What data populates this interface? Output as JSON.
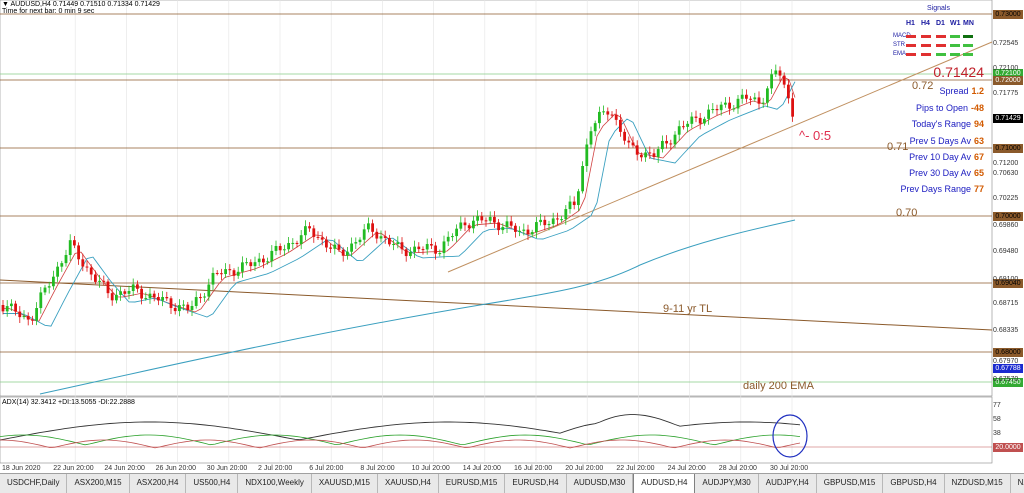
{
  "header": {
    "line1": "▼ AUDUSD,H4  0.71449 0.71510 0.71334 0.71429",
    "line2": "Time for next bar: 0 min 9 sec"
  },
  "signals": {
    "title": "Signals",
    "timeframes": [
      "H1",
      "H4",
      "D1",
      "W1",
      "MN"
    ],
    "rows": [
      {
        "label": "MACD",
        "cells": [
          "red",
          "red",
          "red",
          "green",
          "darkgreen"
        ]
      },
      {
        "label": "STR",
        "cells": [
          "red",
          "red",
          "red",
          "green",
          "green"
        ]
      },
      {
        "label": "EMA",
        "cells": [
          "red",
          "red",
          "green",
          "green",
          "green"
        ]
      }
    ]
  },
  "stats": {
    "price": "0.71424",
    "rows": [
      {
        "label": "Spread",
        "value": "1.2"
      },
      {
        "label": "Pips to Open",
        "value": "-48"
      },
      {
        "label": "Today's Range",
        "value": "94"
      },
      {
        "label": "Prev 5 Days Av",
        "value": "63"
      },
      {
        "label": "Prev 10 Day Av",
        "value": "67"
      },
      {
        "label": "Prev 30 Day Av",
        "value": "65"
      },
      {
        "label": "Prev Days Range",
        "value": "77"
      }
    ]
  },
  "annotations": {
    "level_072": "0.72",
    "level_071": "0.71",
    "level_070": "0.70",
    "trend_label": "9-11 yr TL",
    "ema_label": "daily 200 EMA",
    "triangle_label": "^- 0:5"
  },
  "price_labels": {
    "top": "0.73000",
    "l72100": "0.72100",
    "l72000": "0.72000",
    "current": "0.71429",
    "l71000": "0.71000",
    "l70000": "0.70000",
    "l69040": "0.69040",
    "l68000": "0.68000",
    "l67788": "0.67788",
    "l67450": "0.67450",
    "adx20": "20.0000"
  },
  "y_axis_labels": [
    "0.72545",
    "0.72100",
    "0.71775",
    "0.71200",
    "0.70630",
    "0.70225",
    "0.69860",
    "0.69480",
    "0.69100",
    "0.68715",
    "0.68335",
    "0.67970",
    "0.67570"
  ],
  "adx_axis_labels": [
    "77",
    "58",
    "38"
  ],
  "indicator": {
    "label": "ADX(14) 32.3412 +DI:13.5055 -DI:22.2888"
  },
  "x_axis_labels": [
    "18 Jun 2020",
    "22 Jun 20:00",
    "24 Jun 20:00",
    "26 Jun 20:00",
    "30 Jun 20:00",
    "2 Jul 20:00",
    "6 Jul 20:00",
    "8 Jul 20:00",
    "10 Jul 20:00",
    "14 Jul 20:00",
    "16 Jul 20:00",
    "20 Jul 20:00",
    "22 Jul 20:00",
    "24 Jul 20:00",
    "28 Jul 20:00",
    "30 Jul 20:00"
  ],
  "tabs": [
    "USDCHF,Daily",
    "ASX200,M15",
    "ASX200,H4",
    "US500,H4",
    "NDX100,Weekly",
    "XAUUSD,M15",
    "XAUUSD,H4",
    "EURUSD,M15",
    "EURUSD,H4",
    "AUDUSD,M30",
    "AUDUSD,H4",
    "AUDJPY,M30",
    "AUDJPY,H4",
    "GBPUSD,M15",
    "GBPUSD,H4",
    "NZDUSD,M15",
    "NZDUSD,H4"
  ],
  "active_tab": "AUDUSD,H4",
  "colors": {
    "bull": "#22bb22",
    "bear": "#dd1111",
    "level_line": "#8b5a2b",
    "ema": "#3a9fbf",
    "adx": "#333333",
    "plus_di": "#2aa02a",
    "minus_di": "#c05050",
    "circle": "#2030c0"
  }
}
